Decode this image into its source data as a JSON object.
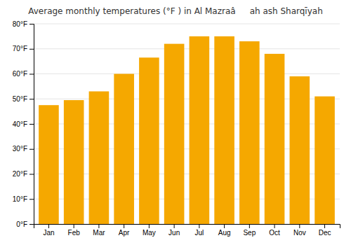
{
  "chart_data": {
    "type": "bar",
    "title": "Average monthly temperatures (°F ) in Al Mazraâah ash Sharqīyah",
    "categories": [
      "Jan",
      "Feb",
      "Mar",
      "Apr",
      "May",
      "Jun",
      "Jul",
      "Aug",
      "Sep",
      "Oct",
      "Nov",
      "Dec"
    ],
    "values": [
      47.5,
      49.5,
      53.0,
      60.0,
      66.5,
      72.0,
      75.0,
      75.0,
      73.0,
      68.0,
      59.0,
      51.0
    ],
    "color": "#F5A800",
    "ylim": [
      0,
      80
    ],
    "yticks": [
      {
        "value": 0,
        "label": "0°F"
      },
      {
        "value": 10,
        "label": "10°F"
      },
      {
        "value": 20,
        "label": "20°F"
      },
      {
        "value": 30,
        "label": "30°F"
      },
      {
        "value": 40,
        "label": "40°F"
      },
      {
        "value": 50,
        "label": "50°F"
      },
      {
        "value": 60,
        "label": "60°F"
      },
      {
        "value": 70,
        "label": "70°F"
      },
      {
        "value": 80,
        "label": "80°F"
      }
    ],
    "grid": true
  }
}
